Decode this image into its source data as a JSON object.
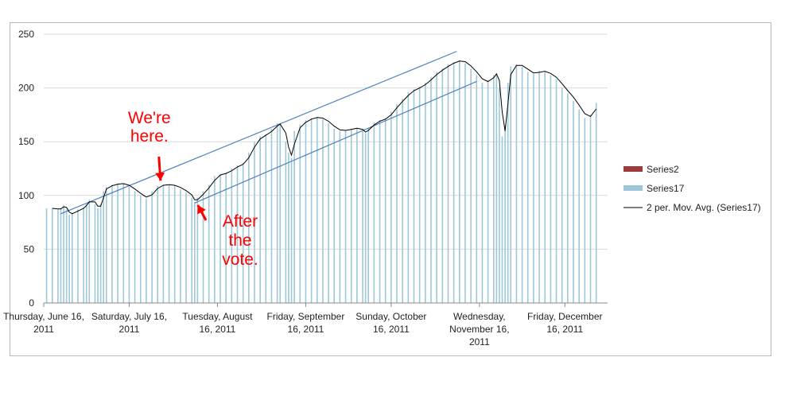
{
  "chart_data": {
    "type": "bar",
    "title": "",
    "xlabel": "",
    "ylabel": "",
    "ylim": [
      0,
      250
    ],
    "y_ticks": [
      "0",
      "50",
      "100",
      "150",
      "200",
      "250"
    ],
    "y_tick_values": [
      0,
      50,
      100,
      150,
      200,
      250
    ],
    "x_range": [
      "2011-06-16",
      "2011-12-31"
    ],
    "x_ticks": [
      {
        "date": "2011-06-16",
        "lines": [
          "Thursday, June 16,",
          "2011"
        ]
      },
      {
        "date": "2011-07-16",
        "lines": [
          "Saturday, July 16,",
          "2011"
        ]
      },
      {
        "date": "2011-08-16",
        "lines": [
          "Tuesday, August",
          "16, 2011"
        ]
      },
      {
        "date": "2011-09-16",
        "lines": [
          "Friday, September",
          "16, 2011"
        ]
      },
      {
        "date": "2011-10-16",
        "lines": [
          "Sunday, October",
          "16, 2011"
        ]
      },
      {
        "date": "2011-11-16",
        "lines": [
          "Wednesday,",
          "November 16,",
          "2011"
        ]
      },
      {
        "date": "2011-12-16",
        "lines": [
          "Friday, December",
          "16, 2011"
        ]
      }
    ],
    "grid": "horizontal",
    "legend_position": "right",
    "legend": [
      {
        "label": "Series2",
        "kind": "bar",
        "color": "#9e3b3b"
      },
      {
        "label": "Series17",
        "kind": "bar",
        "color": "#9ec8d9"
      },
      {
        "label": "2 per. Mov. Avg. (Series17)",
        "kind": "line",
        "color": "#000000"
      }
    ],
    "series17_color": "#9ec8d9",
    "moving_average_color": "#000000",
    "trendline_color": "#4f81bd",
    "series17": [
      {
        "x": "2011-06-17",
        "y": 88
      },
      {
        "x": "2011-06-19",
        "y": 88
      },
      {
        "x": "2011-06-21",
        "y": 87
      },
      {
        "x": "2011-06-22",
        "y": 88
      },
      {
        "x": "2011-06-23",
        "y": 91
      },
      {
        "x": "2011-06-24",
        "y": 87
      },
      {
        "x": "2011-06-25",
        "y": 82
      },
      {
        "x": "2011-06-26",
        "y": 84
      },
      {
        "x": "2011-06-28",
        "y": 87
      },
      {
        "x": "2011-06-30",
        "y": 89
      },
      {
        "x": "2011-07-01",
        "y": 92
      },
      {
        "x": "2011-07-02",
        "y": 96
      },
      {
        "x": "2011-07-04",
        "y": 92
      },
      {
        "x": "2011-07-05",
        "y": 88
      },
      {
        "x": "2011-07-06",
        "y": 92
      },
      {
        "x": "2011-07-07",
        "y": 104
      },
      {
        "x": "2011-07-08",
        "y": 108
      },
      {
        "x": "2011-07-10",
        "y": 110
      },
      {
        "x": "2011-07-12",
        "y": 111
      },
      {
        "x": "2011-07-14",
        "y": 111
      },
      {
        "x": "2011-07-16",
        "y": 108
      },
      {
        "x": "2011-07-18",
        "y": 104
      },
      {
        "x": "2011-07-20",
        "y": 100
      },
      {
        "x": "2011-07-22",
        "y": 97
      },
      {
        "x": "2011-07-24",
        "y": 104
      },
      {
        "x": "2011-07-26",
        "y": 109
      },
      {
        "x": "2011-07-28",
        "y": 110
      },
      {
        "x": "2011-07-30",
        "y": 110
      },
      {
        "x": "2011-08-01",
        "y": 109
      },
      {
        "x": "2011-08-03",
        "y": 106
      },
      {
        "x": "2011-08-05",
        "y": 103
      },
      {
        "x": "2011-08-07",
        "y": 98
      },
      {
        "x": "2011-08-08",
        "y": 94
      },
      {
        "x": "2011-08-09",
        "y": 98
      },
      {
        "x": "2011-08-11",
        "y": 104
      },
      {
        "x": "2011-08-13",
        "y": 110
      },
      {
        "x": "2011-08-15",
        "y": 118
      },
      {
        "x": "2011-08-17",
        "y": 120
      },
      {
        "x": "2011-08-19",
        "y": 121
      },
      {
        "x": "2011-08-21",
        "y": 125
      },
      {
        "x": "2011-08-23",
        "y": 128
      },
      {
        "x": "2011-08-25",
        "y": 130
      },
      {
        "x": "2011-08-27",
        "y": 140
      },
      {
        "x": "2011-08-29",
        "y": 150
      },
      {
        "x": "2011-08-31",
        "y": 155
      },
      {
        "x": "2011-09-02",
        "y": 157
      },
      {
        "x": "2011-09-04",
        "y": 162
      },
      {
        "x": "2011-09-06",
        "y": 167
      },
      {
        "x": "2011-09-07",
        "y": 166
      },
      {
        "x": "2011-09-09",
        "y": 150
      },
      {
        "x": "2011-09-10",
        "y": 140
      },
      {
        "x": "2011-09-11",
        "y": 135
      },
      {
        "x": "2011-09-12",
        "y": 160
      },
      {
        "x": "2011-09-14",
        "y": 166
      },
      {
        "x": "2011-09-16",
        "y": 170
      },
      {
        "x": "2011-09-18",
        "y": 172
      },
      {
        "x": "2011-09-20",
        "y": 173
      },
      {
        "x": "2011-09-22",
        "y": 171
      },
      {
        "x": "2011-09-24",
        "y": 167
      },
      {
        "x": "2011-09-26",
        "y": 162
      },
      {
        "x": "2011-09-28",
        "y": 160
      },
      {
        "x": "2011-09-30",
        "y": 161
      },
      {
        "x": "2011-10-02",
        "y": 162
      },
      {
        "x": "2011-10-04",
        "y": 163
      },
      {
        "x": "2011-10-06",
        "y": 160
      },
      {
        "x": "2011-10-07",
        "y": 158
      },
      {
        "x": "2011-10-08",
        "y": 163
      },
      {
        "x": "2011-10-10",
        "y": 168
      },
      {
        "x": "2011-10-12",
        "y": 170
      },
      {
        "x": "2011-10-14",
        "y": 172
      },
      {
        "x": "2011-10-16",
        "y": 178
      },
      {
        "x": "2011-10-18",
        "y": 185
      },
      {
        "x": "2011-10-20",
        "y": 190
      },
      {
        "x": "2011-10-22",
        "y": 196
      },
      {
        "x": "2011-10-24",
        "y": 199
      },
      {
        "x": "2011-10-26",
        "y": 201
      },
      {
        "x": "2011-10-28",
        "y": 205
      },
      {
        "x": "2011-10-30",
        "y": 210
      },
      {
        "x": "2011-11-01",
        "y": 215
      },
      {
        "x": "2011-11-03",
        "y": 218
      },
      {
        "x": "2011-11-05",
        "y": 222
      },
      {
        "x": "2011-11-07",
        "y": 224
      },
      {
        "x": "2011-11-09",
        "y": 226
      },
      {
        "x": "2011-11-11",
        "y": 223
      },
      {
        "x": "2011-11-13",
        "y": 218
      },
      {
        "x": "2011-11-15",
        "y": 212
      },
      {
        "x": "2011-11-17",
        "y": 205
      },
      {
        "x": "2011-11-19",
        "y": 207
      },
      {
        "x": "2011-11-21",
        "y": 212
      },
      {
        "x": "2011-11-22",
        "y": 214
      },
      {
        "x": "2011-11-23",
        "y": 200
      },
      {
        "x": "2011-11-24",
        "y": 155
      },
      {
        "x": "2011-11-25",
        "y": 165
      },
      {
        "x": "2011-11-26",
        "y": 205
      },
      {
        "x": "2011-11-27",
        "y": 220
      },
      {
        "x": "2011-11-29",
        "y": 222
      },
      {
        "x": "2011-12-01",
        "y": 220
      },
      {
        "x": "2011-12-03",
        "y": 215
      },
      {
        "x": "2011-12-05",
        "y": 213
      },
      {
        "x": "2011-12-07",
        "y": 216
      },
      {
        "x": "2011-12-09",
        "y": 215
      },
      {
        "x": "2011-12-11",
        "y": 212
      },
      {
        "x": "2011-12-13",
        "y": 208
      },
      {
        "x": "2011-12-15",
        "y": 200
      },
      {
        "x": "2011-12-17",
        "y": 195
      },
      {
        "x": "2011-12-19",
        "y": 188
      },
      {
        "x": "2011-12-21",
        "y": 180
      },
      {
        "x": "2011-12-23",
        "y": 172
      },
      {
        "x": "2011-12-25",
        "y": 175
      },
      {
        "x": "2011-12-27",
        "y": 186
      }
    ],
    "trendlines": [
      {
        "start": {
          "x": "2011-06-22",
          "y": 83
        },
        "end": {
          "x": "2011-11-08",
          "y": 234
        }
      },
      {
        "start": {
          "x": "2011-08-08",
          "y": 93
        },
        "end": {
          "x": "2011-11-15",
          "y": 206
        }
      }
    ],
    "annotations": [
      {
        "lines": [
          "We're",
          "here."
        ],
        "arrow_to": {
          "x": "2011-07-27",
          "y": 110
        }
      },
      {
        "lines": [
          "After",
          "the",
          "vote."
        ],
        "arrow_to": {
          "x": "2011-08-08",
          "y": 94
        }
      }
    ]
  }
}
